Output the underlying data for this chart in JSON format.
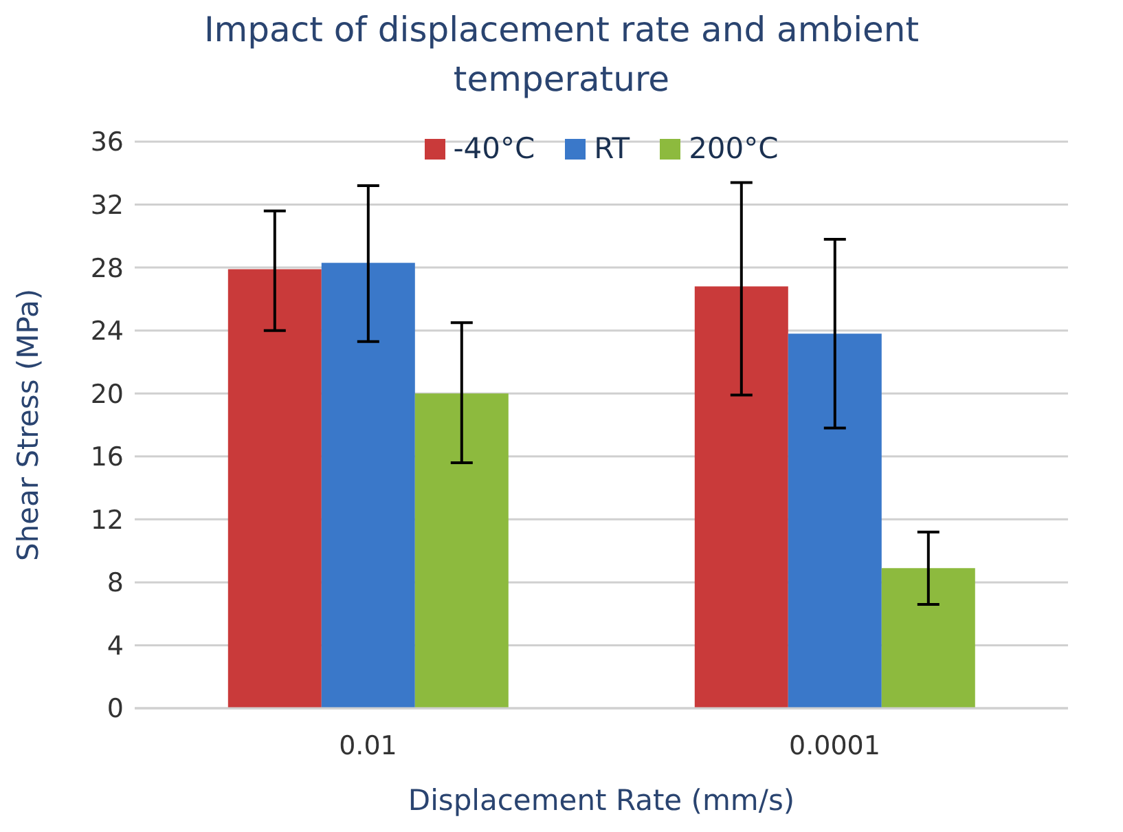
{
  "chart_data": {
    "type": "bar",
    "title": "Impact of displacement rate and ambient temperature",
    "xlabel": "Displacement Rate (mm/s)",
    "ylabel": "Shear Stress (MPa)",
    "categories": [
      "0.01",
      "0.0001"
    ],
    "series": [
      {
        "name": "-40°C",
        "color": "#c93a3a",
        "values": [
          27.9,
          26.8
        ],
        "errors": [
          [
            24.0,
            31.6
          ],
          [
            19.9,
            33.4
          ]
        ]
      },
      {
        "name": "RT",
        "color": "#3a78c9",
        "values": [
          28.3,
          23.8
        ],
        "errors": [
          [
            23.3,
            33.2
          ],
          [
            17.8,
            29.8
          ]
        ]
      },
      {
        "name": "200°C",
        "color": "#8dba3e",
        "values": [
          20.0,
          8.9
        ],
        "errors": [
          [
            15.6,
            24.5
          ],
          [
            6.6,
            11.2
          ]
        ]
      }
    ],
    "ylim": [
      0,
      36
    ],
    "yticks": [
      0,
      4,
      8,
      12,
      16,
      20,
      24,
      28,
      32,
      36
    ],
    "grid": "y",
    "legend": "top"
  }
}
